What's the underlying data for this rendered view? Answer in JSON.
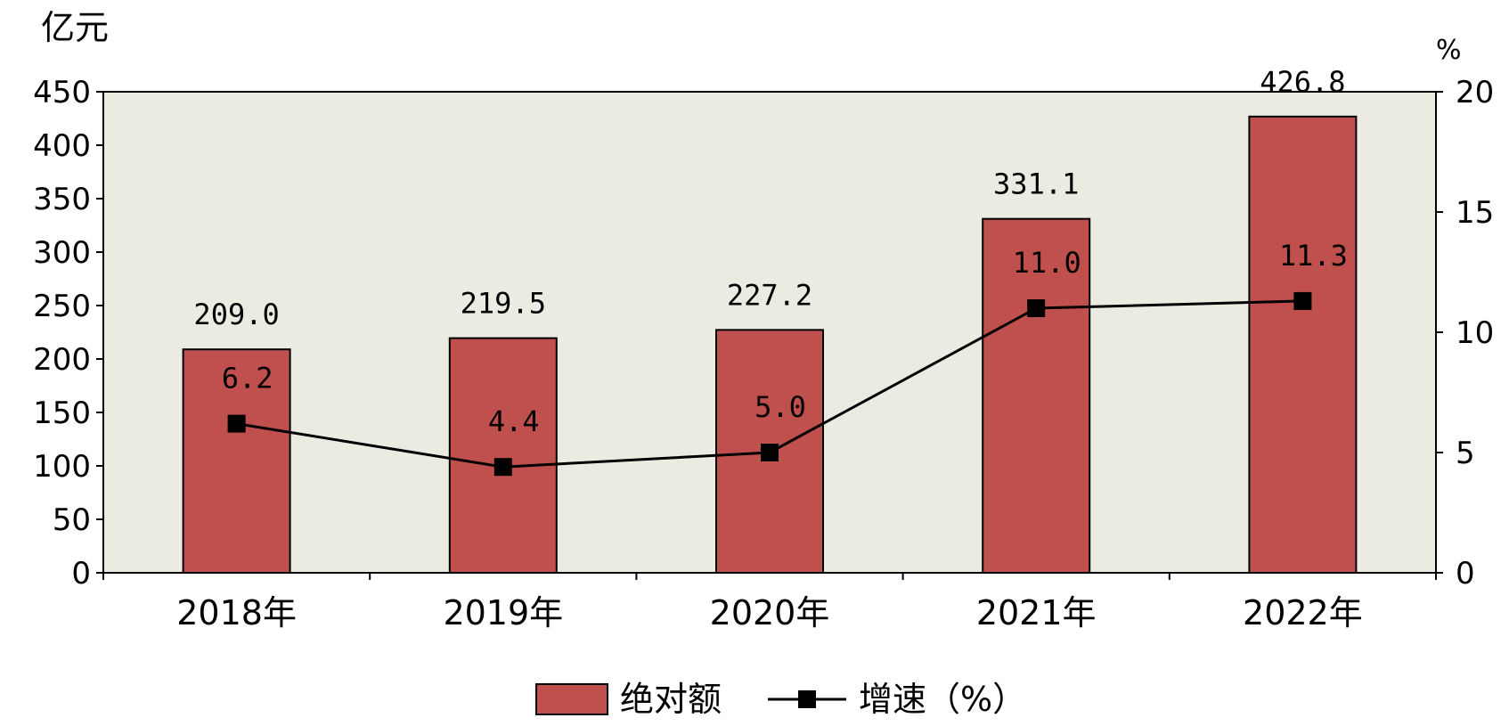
{
  "chart_data": {
    "type": "bar",
    "categories": [
      "2018年",
      "2019年",
      "2020年",
      "2021年",
      "2022年"
    ],
    "series": [
      {
        "name": "绝对额",
        "type": "bar",
        "axis": "left",
        "values": [
          209.0,
          219.5,
          227.2,
          331.1,
          426.8
        ],
        "labels": [
          "209.0",
          "219.5",
          "227.2",
          "331.1",
          "426.8"
        ]
      },
      {
        "name": "增速（%）",
        "type": "line",
        "axis": "right",
        "values": [
          6.2,
          4.4,
          5.0,
          11.0,
          11.3
        ],
        "labels": [
          "6.2",
          "4.4",
          "5.0",
          "11.0",
          "11.3"
        ]
      }
    ],
    "title": "",
    "ylabel_left": "亿元",
    "ylabel_right": "%",
    "ylim_left": [
      0,
      450
    ],
    "yticks_left": [
      "0",
      "50",
      "100",
      "150",
      "200",
      "250",
      "300",
      "350",
      "400",
      "450"
    ],
    "ylim_right": [
      0,
      20
    ],
    "yticks_right": [
      "0",
      "5",
      "10",
      "15",
      "20"
    ],
    "grid": false,
    "legend_position": "bottom-center",
    "colors": {
      "bar": "#c0504d",
      "bar_stroke": "#000000",
      "line": "#000000",
      "plot_bg": "#ecebe2",
      "marker": "#000000"
    }
  }
}
